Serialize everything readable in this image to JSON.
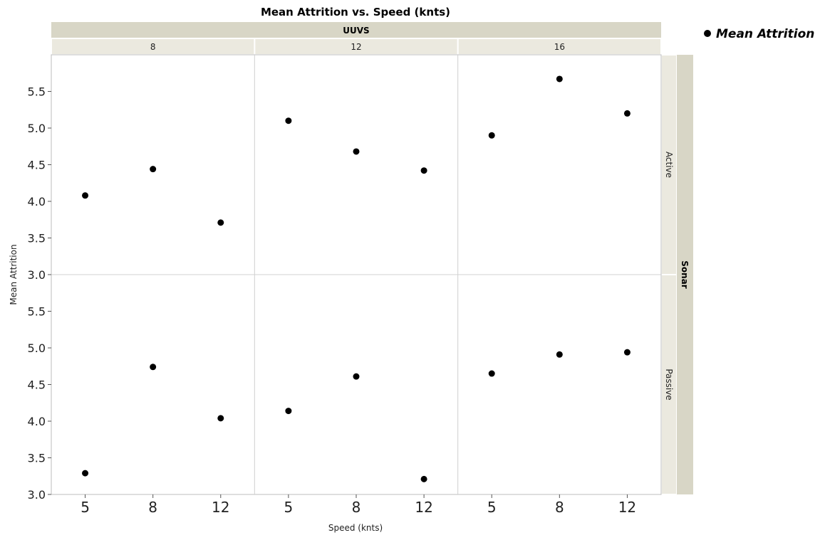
{
  "chart_data": {
    "type": "scatter",
    "title": "Mean Attrition vs. Speed (knts)",
    "xlabel": "Speed (knts)",
    "ylabel": "Mean Attrition",
    "x_categories": [
      "5",
      "8",
      "12"
    ],
    "ylim": [
      3.0,
      6.0
    ],
    "yticks": [
      "3.0",
      "3.5",
      "4.0",
      "4.5",
      "5.0",
      "5.5"
    ],
    "column_group": {
      "label": "UUVS",
      "levels": [
        "8",
        "12",
        "16"
      ]
    },
    "row_group": {
      "label": "Sonar",
      "levels": [
        "Active",
        "Passive"
      ]
    },
    "legend": {
      "label": "Mean Attrition",
      "position": "top-right"
    },
    "marker_color": "#000000",
    "panels": [
      {
        "uuvs": "8",
        "sonar": "Active",
        "x": [
          "5",
          "8",
          "12"
        ],
        "y": [
          4.08,
          4.44,
          3.71
        ]
      },
      {
        "uuvs": "12",
        "sonar": "Active",
        "x": [
          "5",
          "8",
          "12"
        ],
        "y": [
          5.1,
          4.68,
          4.42
        ]
      },
      {
        "uuvs": "16",
        "sonar": "Active",
        "x": [
          "5",
          "8",
          "12"
        ],
        "y": [
          4.9,
          5.67,
          5.2
        ]
      },
      {
        "uuvs": "8",
        "sonar": "Passive",
        "x": [
          "5",
          "8",
          "12"
        ],
        "y": [
          3.29,
          4.74,
          4.04
        ]
      },
      {
        "uuvs": "12",
        "sonar": "Passive",
        "x": [
          "5",
          "8",
          "12"
        ],
        "y": [
          4.14,
          4.61,
          3.21
        ]
      },
      {
        "uuvs": "16",
        "sonar": "Passive",
        "x": [
          "5",
          "8",
          "12"
        ],
        "y": [
          4.65,
          4.91,
          4.94
        ]
      }
    ]
  }
}
